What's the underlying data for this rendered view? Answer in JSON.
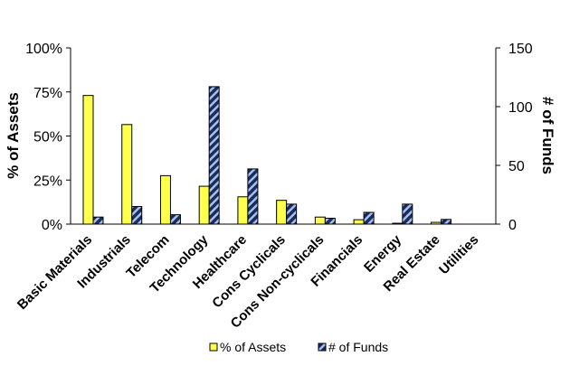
{
  "chart_data": {
    "type": "bar",
    "title": "",
    "xlabel": "",
    "ylabel": "% of Assets",
    "y2label": "# of Funds",
    "ylim": [
      0,
      100
    ],
    "y2lim": [
      0,
      150
    ],
    "yticks": [
      "0%",
      "25%",
      "50%",
      "75%",
      "100%"
    ],
    "y2ticks": [
      "0",
      "50",
      "100",
      "150"
    ],
    "categories": [
      "Basic Materials",
      "Industrials",
      "Telecom",
      "Technology",
      "Healthcare",
      "Cons Cyclicals",
      "Cons Non-cyclicals",
      "Financials",
      "Energy",
      "Real Estate",
      "Utilities"
    ],
    "series": [
      {
        "name": "% of Assets",
        "axis": "left",
        "color": "#ffff4d",
        "values": [
          73,
          56.5,
          27.5,
          21.5,
          15.5,
          13.5,
          4,
          2.5,
          0.5,
          1,
          0
        ]
      },
      {
        "name": "# of Funds",
        "axis": "right",
        "color": "#1f2a5c",
        "pattern": "diagonal-stripe",
        "values": [
          6,
          15,
          8,
          117,
          47,
          17,
          5,
          10,
          17,
          4,
          0
        ]
      }
    ],
    "legend_position": "bottom",
    "grid": false
  }
}
